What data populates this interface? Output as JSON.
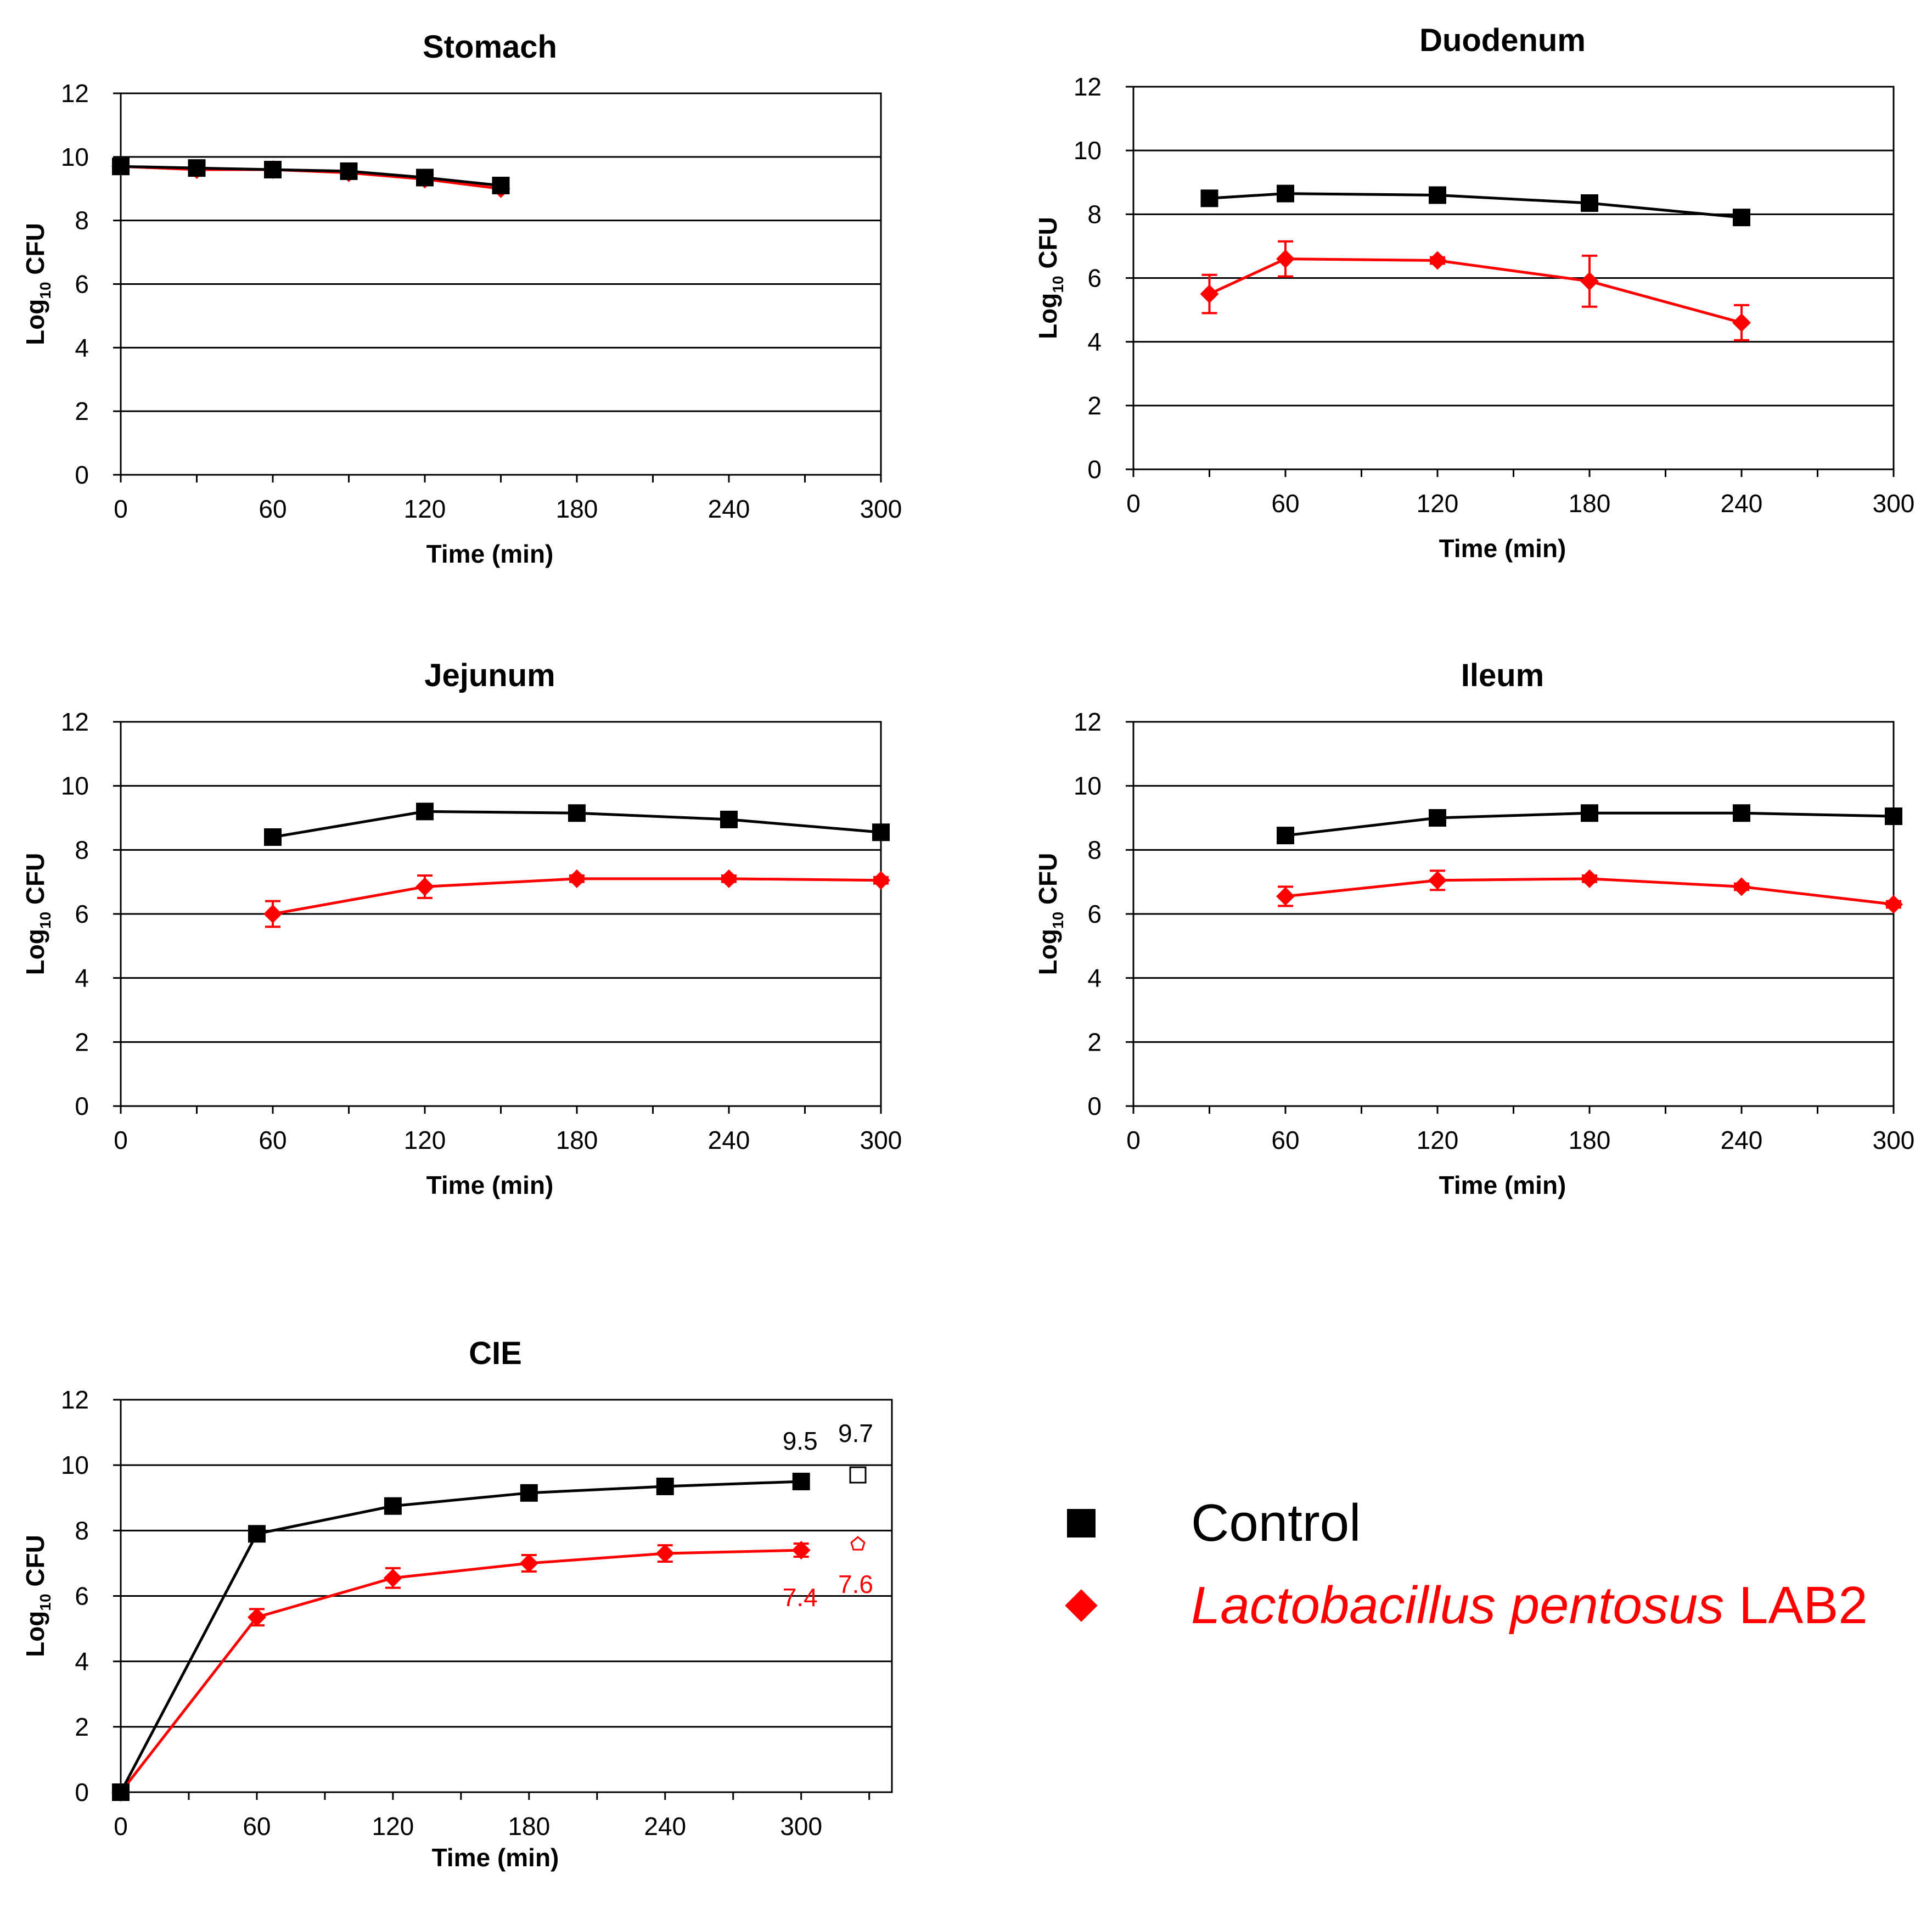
{
  "colors": {
    "control": "#000000",
    "lab2": "#ff0000"
  },
  "legend": {
    "control": "Control",
    "lab2_italic": "Lactobacillus pentosus",
    "lab2_suffix": " LAB2"
  },
  "chart_data": [
    {
      "type": "line",
      "title": "Stomach",
      "xlabel": "Time (min)",
      "ylabel_main": "Log",
      "ylabel_sub": "10",
      "ylabel_rest": " CFU",
      "xlim": [
        0,
        300
      ],
      "ylim": [
        0,
        12
      ],
      "xticks": [
        "0",
        "60",
        "120",
        "180",
        "240",
        "300"
      ],
      "yticks": [
        "0",
        "2",
        "4",
        "6",
        "8",
        "10",
        "12"
      ],
      "series": [
        {
          "name": "Control",
          "x": [
            0,
            30,
            60,
            90,
            120,
            150
          ],
          "values": [
            9.7,
            9.65,
            9.6,
            9.55,
            9.35,
            9.1
          ]
        },
        {
          "name": "Lactobacillus pentosus LAB2",
          "x": [
            0,
            30,
            60,
            90,
            120,
            150
          ],
          "values": [
            9.7,
            9.6,
            9.6,
            9.5,
            9.3,
            9.0
          ],
          "errors": [
            0.1,
            0.1,
            0.1,
            0.1,
            0.1,
            0.1
          ]
        }
      ]
    },
    {
      "type": "line",
      "title": "Duodenum",
      "xlabel": "Time (min)",
      "ylabel_main": "Log",
      "ylabel_sub": "10",
      "ylabel_rest": " CFU",
      "xlim": [
        0,
        300
      ],
      "ylim": [
        0,
        12
      ],
      "xticks": [
        "0",
        "60",
        "120",
        "180",
        "240",
        "300"
      ],
      "yticks": [
        "0",
        "2",
        "4",
        "6",
        "8",
        "10",
        "12"
      ],
      "series": [
        {
          "name": "Control",
          "x": [
            30,
            60,
            120,
            180,
            240
          ],
          "values": [
            8.5,
            8.65,
            8.6,
            8.35,
            7.9
          ]
        },
        {
          "name": "Lactobacillus pentosus LAB2",
          "x": [
            30,
            60,
            120,
            180,
            240
          ],
          "values": [
            5.5,
            6.6,
            6.55,
            5.9,
            4.6
          ],
          "errors": [
            0.6,
            0.55,
            0.1,
            0.8,
            0.55
          ]
        }
      ]
    },
    {
      "type": "line",
      "title": "Jejunum",
      "xlabel": "Time (min)",
      "ylabel_main": "Log",
      "ylabel_sub": "10",
      "ylabel_rest": " CFU",
      "xlim": [
        0,
        300
      ],
      "ylim": [
        0,
        12
      ],
      "xticks": [
        "0",
        "60",
        "120",
        "180",
        "240",
        "300"
      ],
      "yticks": [
        "0",
        "2",
        "4",
        "6",
        "8",
        "10",
        "12"
      ],
      "series": [
        {
          "name": "Control",
          "x": [
            60,
            120,
            180,
            240,
            300
          ],
          "values": [
            8.4,
            9.2,
            9.15,
            8.95,
            8.55
          ]
        },
        {
          "name": "Lactobacillus pentosus LAB2",
          "x": [
            60,
            120,
            180,
            240,
            300
          ],
          "values": [
            6.0,
            6.85,
            7.1,
            7.1,
            7.05
          ],
          "errors": [
            0.4,
            0.35,
            0.1,
            0.1,
            0.1
          ]
        }
      ]
    },
    {
      "type": "line",
      "title": "Ileum",
      "xlabel": "Time (min)",
      "ylabel_main": "Log",
      "ylabel_sub": "10",
      "ylabel_rest": " CFU",
      "xlim": [
        0,
        300
      ],
      "ylim": [
        0,
        12
      ],
      "xticks": [
        "0",
        "60",
        "120",
        "180",
        "240",
        "300"
      ],
      "yticks": [
        "0",
        "2",
        "4",
        "6",
        "8",
        "10",
        "12"
      ],
      "series": [
        {
          "name": "Control",
          "x": [
            60,
            120,
            180,
            240,
            300
          ],
          "values": [
            8.45,
            9.0,
            9.15,
            9.15,
            9.05
          ]
        },
        {
          "name": "Lactobacillus pentosus LAB2",
          "x": [
            60,
            120,
            180,
            240,
            300
          ],
          "values": [
            6.55,
            7.05,
            7.1,
            6.85,
            6.3
          ],
          "errors": [
            0.3,
            0.3,
            0.1,
            0.1,
            0.1
          ]
        }
      ]
    },
    {
      "type": "line",
      "title": "CIE",
      "xlabel": "Time (min)",
      "ylabel_main": "Log",
      "ylabel_sub": "10",
      "ylabel_rest": " CFU",
      "xlim": [
        0,
        340
      ],
      "ylim": [
        0,
        12
      ],
      "xticks": [
        "0",
        "60",
        "120",
        "180",
        "240",
        "300"
      ],
      "yticks": [
        "0",
        "2",
        "4",
        "6",
        "8",
        "10",
        "12"
      ],
      "series": [
        {
          "name": "Control",
          "x": [
            0,
            60,
            120,
            180,
            240,
            300
          ],
          "values": [
            0,
            7.9,
            8.75,
            9.15,
            9.35,
            9.5
          ]
        },
        {
          "name": "Lactobacillus pentosus LAB2",
          "x": [
            0,
            60,
            120,
            180,
            240,
            300
          ],
          "values": [
            0,
            5.35,
            6.55,
            7.0,
            7.3,
            7.4
          ],
          "errors": [
            0.1,
            0.25,
            0.3,
            0.25,
            0.25,
            0.2
          ]
        }
      ],
      "extra_points": [
        {
          "series": "Control",
          "x": 325,
          "value": 9.7,
          "hollow": true
        },
        {
          "series": "Lactobacillus pentosus LAB2",
          "x": 325,
          "value": 7.6,
          "hollow": true
        }
      ],
      "annotations": [
        {
          "text": "9.5",
          "series": "Control"
        },
        {
          "text": "9.7",
          "series": "Control"
        },
        {
          "text": "7.4",
          "series": "Lactobacillus pentosus LAB2"
        },
        {
          "text": "7.6",
          "series": "Lactobacillus pentosus LAB2"
        }
      ]
    }
  ]
}
